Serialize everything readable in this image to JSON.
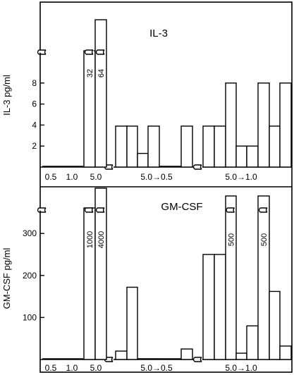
{
  "chart_data": [
    {
      "type": "bar",
      "title": "IL-3",
      "ylabel": "IL-3 pg/ml",
      "y_ticks": [
        "2",
        "4",
        "6",
        "8"
      ],
      "ylim": [
        0,
        10
      ],
      "broken_axis": true,
      "groups": [
        {
          "label": "0.5",
          "values": [
            0
          ]
        },
        {
          "label": "1.0",
          "values": [
            0
          ]
        },
        {
          "label": "5.0",
          "values": [
            32,
            64
          ],
          "value_labels": [
            "32",
            "64"
          ]
        },
        {
          "label": "5.0→0.5",
          "values": [
            3.9,
            3.9,
            1.3,
            3.9,
            0,
            3.9
          ]
        },
        {
          "label": "5.0→1.0",
          "values": [
            3.9,
            3.9,
            8,
            2,
            2,
            8,
            3.9,
            8
          ]
        }
      ],
      "x_labels": [
        "0.5",
        "1.0",
        "5.0",
        "5.0→0.5",
        "5.0→1.0"
      ]
    },
    {
      "type": "bar",
      "title": "GM-CSF",
      "ylabel": "GM-CSF pg/ml",
      "y_ticks": [
        "100",
        "200",
        "300"
      ],
      "ylim": [
        0,
        350
      ],
      "broken_axis": true,
      "groups": [
        {
          "label": "0.5",
          "values": [
            0
          ]
        },
        {
          "label": "1.0",
          "values": [
            0
          ]
        },
        {
          "label": "5.0",
          "values": [
            1000,
            4000
          ],
          "value_labels": [
            "1000",
            "4000"
          ]
        },
        {
          "label": "5.0→0.5",
          "values": [
            20,
            172,
            0,
            0,
            0,
            25
          ]
        },
        {
          "label": "5.0→1.0",
          "values": [
            250,
            250,
            500,
            15,
            80,
            500,
            162,
            32
          ],
          "value_labels": [
            "",
            "",
            "500",
            "",
            "",
            "500",
            "",
            ""
          ]
        }
      ],
      "x_labels": [
        "0.5",
        "1.0",
        "5.0",
        "5.0→0.5",
        "5.0→1.0"
      ]
    }
  ]
}
